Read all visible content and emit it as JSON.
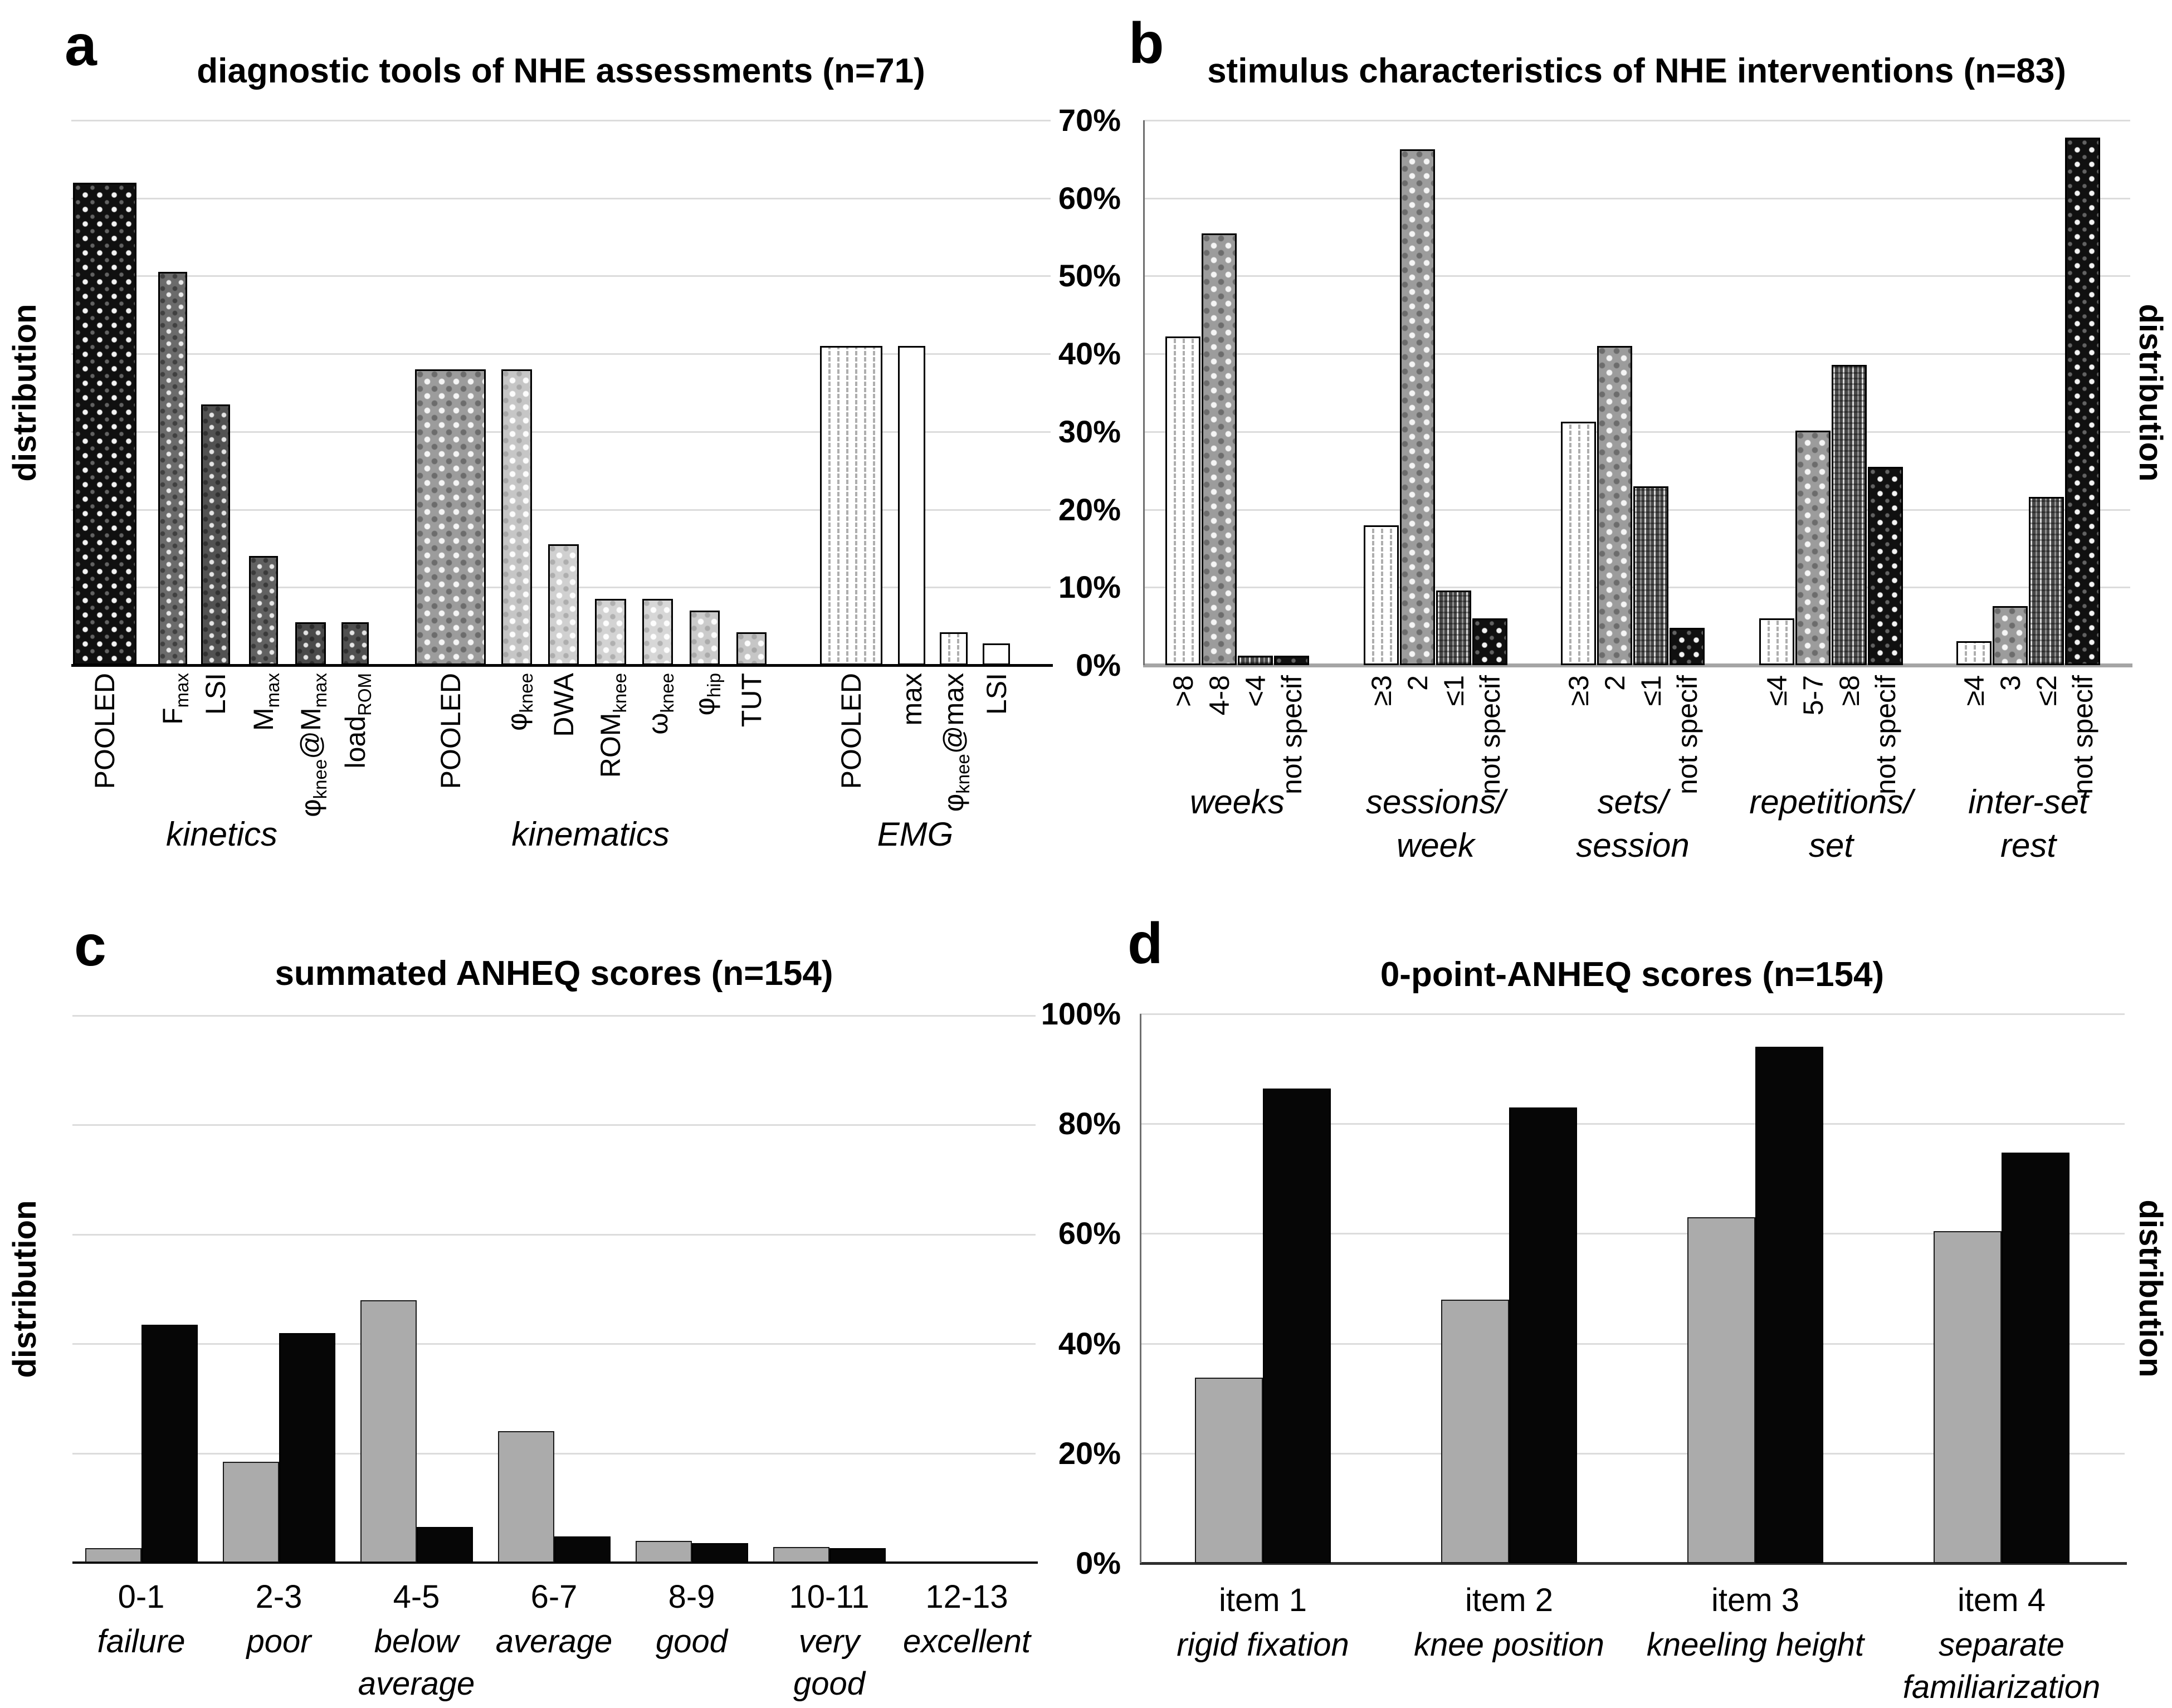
{
  "figure": {
    "background": "#ffffff",
    "gridline_color": "#dcdcdc"
  },
  "chart_data": [
    {
      "panel_letter": "a",
      "type": "bar",
      "title": "diagnostic tools of NHE assessments (n=71)",
      "ylabel": "distribution",
      "ylabel_side": "left",
      "y_axis": {
        "min": 0,
        "max": 70,
        "gridline_step": 10,
        "tick_labels": [],
        "grid": true
      },
      "groups": [
        {
          "label": "kinetics",
          "bars": [
            {
              "label": "POOLED",
              "parts": [
                {
                  "t": "POOLED"
                }
              ],
              "value": 62,
              "pattern": "p-dot-black",
              "color": "#101010"
            },
            {
              "label": "Fmax",
              "parts": [
                {
                  "t": "F"
                },
                {
                  "s": "max"
                }
              ],
              "value": 50.5,
              "pattern": "p-check-dark",
              "color": "#6b6b6b"
            },
            {
              "label": "LSI",
              "parts": [
                {
                  "t": "LSI"
                }
              ],
              "value": 33.5,
              "pattern": "p-check-dark",
              "color": "#525252"
            },
            {
              "label": "Mmax",
              "parts": [
                {
                  "t": "M"
                },
                {
                  "s": "max"
                }
              ],
              "value": 14,
              "pattern": "p-check-dark",
              "color": "#616161"
            },
            {
              "label": "φknee@Mmax",
              "parts": [
                {
                  "t": "φ"
                },
                {
                  "s": "knee"
                },
                {
                  "t": "@M"
                },
                {
                  "s": "max"
                }
              ],
              "value": 5.5,
              "pattern": "p-check-dark",
              "color": "#4a4a4a"
            },
            {
              "label": "loadROM",
              "parts": [
                {
                  "t": "load"
                },
                {
                  "s": "ROM"
                }
              ],
              "value": 5.5,
              "pattern": "p-check-dark",
              "color": "#505050"
            }
          ]
        },
        {
          "label": "kinematics",
          "bars": [
            {
              "label": "POOLED",
              "parts": [
                {
                  "t": "POOLED"
                }
              ],
              "value": 38,
              "pattern": "p-check-med",
              "color": "#9c9c9c"
            },
            {
              "label": "φknee",
              "parts": [
                {
                  "t": "φ"
                },
                {
                  "s": "knee"
                }
              ],
              "value": 38,
              "pattern": "p-check-light",
              "color": "#c6c6c6"
            },
            {
              "label": "DWA",
              "parts": [
                {
                  "t": "DWA"
                }
              ],
              "value": 15.5,
              "pattern": "p-check-light",
              "color": "#d0d0d0"
            },
            {
              "label": "ROMknee",
              "parts": [
                {
                  "t": "ROM"
                },
                {
                  "s": "knee"
                }
              ],
              "value": 8.5,
              "pattern": "p-check-light",
              "color": "#d3d3d3"
            },
            {
              "label": "ωknee",
              "parts": [
                {
                  "t": "ω"
                },
                {
                  "s": "knee"
                }
              ],
              "value": 8.5,
              "pattern": "p-check-light",
              "color": "#d7d7d7"
            },
            {
              "label": "φhip",
              "parts": [
                {
                  "t": "φ"
                },
                {
                  "s": "hip"
                }
              ],
              "value": 7,
              "pattern": "p-check-light",
              "color": "#cbcbcb"
            },
            {
              "label": "TUT",
              "parts": [
                {
                  "t": "TUT"
                }
              ],
              "value": 4.2,
              "pattern": "p-check-light",
              "color": "#c6c6c6"
            }
          ]
        },
        {
          "label": "EMG",
          "bars": [
            {
              "label": "POOLED",
              "parts": [
                {
                  "t": "POOLED"
                }
              ],
              "value": 41,
              "pattern": "p-stripe-white",
              "color": "#ffffff"
            },
            {
              "label": "max",
              "parts": [
                {
                  "t": "max"
                }
              ],
              "value": 41,
              "pattern": "p-plain",
              "color": "#ffffff"
            },
            {
              "label": "φknee@max",
              "parts": [
                {
                  "t": "φ"
                },
                {
                  "s": "knee"
                },
                {
                  "t": "@max"
                }
              ],
              "value": 4.2,
              "pattern": "p-stripe-white",
              "color": "#ffffff"
            },
            {
              "label": "LSI",
              "parts": [
                {
                  "t": "LSI"
                }
              ],
              "value": 2.8,
              "pattern": "p-plain",
              "color": "#ffffff"
            }
          ]
        }
      ]
    },
    {
      "panel_letter": "b",
      "type": "bar",
      "title": "stimulus characteristics of NHE interventions (n=83)",
      "ylabel": "distribution",
      "ylabel_side": "right",
      "y_axis": {
        "min": 0,
        "max": 70,
        "gridline_step": 10,
        "tick_labels": [
          "70%",
          "60%",
          "50%",
          "40%",
          "30%",
          "20%",
          "10%",
          "0%"
        ],
        "grid": true
      },
      "bar_styles": [
        {
          "pattern": "p-stripe-white",
          "color": "#ffffff"
        },
        {
          "pattern": "p-check-med",
          "color": "#9c9c9c"
        },
        {
          "pattern": "p-stripe-dark",
          "color": "#474747"
        },
        {
          "pattern": "p-dot-black",
          "color": "#101010"
        }
      ],
      "groups": [
        {
          "label_lines": [
            "weeks"
          ],
          "bars": [
            {
              "label": ">8",
              "value": 42.2
            },
            {
              "label": "4-8",
              "value": 55.5
            },
            {
              "label": "<4",
              "value": 1.2
            },
            {
              "label": "not specif",
              "value": 1.2
            }
          ]
        },
        {
          "label_lines": [
            "sessions/",
            "week"
          ],
          "bars": [
            {
              "label": "≥3",
              "value": 18
            },
            {
              "label": "2",
              "value": 66.3
            },
            {
              "label": "≤1",
              "value": 9.6
            },
            {
              "label": "not specif",
              "value": 6
            }
          ]
        },
        {
          "label_lines": [
            "sets/",
            "session"
          ],
          "bars": [
            {
              "label": "≥3",
              "value": 31.3
            },
            {
              "label": "2",
              "value": 41
            },
            {
              "label": "≤1",
              "value": 23
            },
            {
              "label": "not specif",
              "value": 4.8
            }
          ]
        },
        {
          "label_lines": [
            "repetitions/",
            "set"
          ],
          "bars": [
            {
              "label": "≤4",
              "value": 6
            },
            {
              "label": "5-7",
              "value": 30.1
            },
            {
              "label": "≥8",
              "value": 38.6
            },
            {
              "label": "not specif",
              "value": 25.5
            }
          ]
        },
        {
          "label_lines": [
            "inter-set",
            "rest"
          ],
          "bars": [
            {
              "label": "≥4",
              "value": 3.1
            },
            {
              "label": "3",
              "value": 7.6
            },
            {
              "label": "≤2",
              "value": 21.6
            },
            {
              "label": "not specif",
              "value": 67.8
            }
          ]
        }
      ]
    },
    {
      "panel_letter": "c",
      "type": "grouped-bar",
      "title": "summated ANHEQ scores (n=154)",
      "ylabel": "distribution",
      "ylabel_side": "left",
      "y_axis": {
        "min": 0,
        "max": 100,
        "gridline_step": 20,
        "tick_labels": [],
        "grid": true
      },
      "categories": [
        {
          "range": "0-1",
          "desc": [
            "failure"
          ]
        },
        {
          "range": "2-3",
          "desc": [
            "poor"
          ]
        },
        {
          "range": "4-5",
          "desc": [
            "below",
            "average"
          ]
        },
        {
          "range": "6-7",
          "desc": [
            "average"
          ]
        },
        {
          "range": "8-9",
          "desc": [
            "good"
          ]
        },
        {
          "range": "10-11",
          "desc": [
            "very",
            "good"
          ]
        },
        {
          "range": "12-13",
          "desc": [
            "excellent"
          ]
        }
      ],
      "series": [
        {
          "name": "gray",
          "color": "#ababab",
          "values": [
            2.6,
            18.4,
            48,
            24,
            4,
            2.9,
            0
          ]
        },
        {
          "name": "black",
          "color": "#060606",
          "values": [
            43.5,
            42,
            6.5,
            4.8,
            3.6,
            2.6,
            0
          ]
        }
      ]
    },
    {
      "panel_letter": "d",
      "type": "grouped-bar",
      "title": "0-point-ANHEQ scores (n=154)",
      "ylabel": "distribution",
      "ylabel_side": "right",
      "y_axis": {
        "min": 0,
        "max": 100,
        "gridline_step": 20,
        "tick_labels": [
          "100%",
          "80%",
          "60%",
          "40%",
          "20%",
          "0%"
        ],
        "grid": true
      },
      "categories": [
        {
          "range": "item 1",
          "desc": [
            "rigid fixation"
          ]
        },
        {
          "range": "item 2",
          "desc": [
            "knee position"
          ]
        },
        {
          "range": "item 3",
          "desc": [
            "kneeling height"
          ]
        },
        {
          "range": "item 4",
          "desc": [
            "separate",
            "familiarization"
          ]
        }
      ],
      "series": [
        {
          "name": "gray",
          "color": "#ababab",
          "values": [
            33.8,
            48,
            63,
            60.4
          ]
        },
        {
          "name": "black",
          "color": "#060606",
          "values": [
            86.4,
            83,
            94,
            74.7
          ]
        }
      ]
    }
  ]
}
